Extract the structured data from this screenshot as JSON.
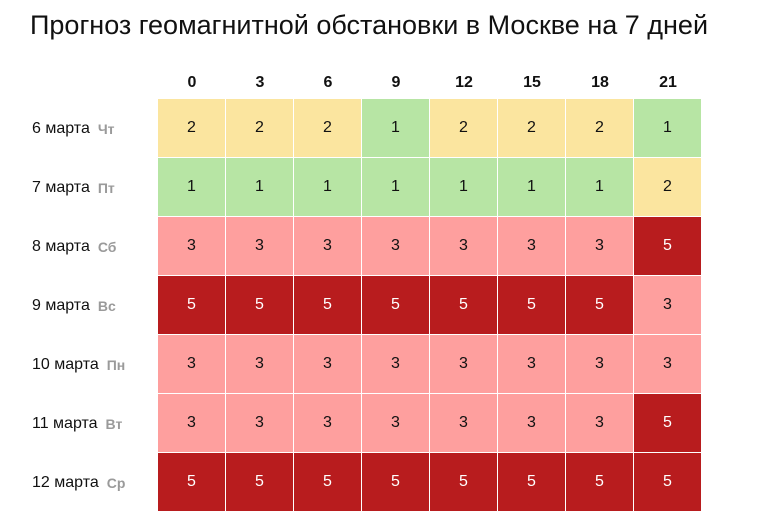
{
  "chart_data": {
    "type": "heatmap",
    "title": "Прогноз геомагнитной обстановки в Москве на 7 дней",
    "columns": [
      "0",
      "3",
      "6",
      "9",
      "12",
      "15",
      "18",
      "21"
    ],
    "rows": [
      {
        "date": "6 марта",
        "dow": "Чт",
        "values": [
          2,
          2,
          2,
          1,
          2,
          2,
          2,
          1
        ]
      },
      {
        "date": "7 марта",
        "dow": "Пт",
        "values": [
          1,
          1,
          1,
          1,
          1,
          1,
          1,
          2
        ]
      },
      {
        "date": "8 марта",
        "dow": "Сб",
        "values": [
          3,
          3,
          3,
          3,
          3,
          3,
          3,
          5
        ]
      },
      {
        "date": "9 марта",
        "dow": "Вс",
        "values": [
          5,
          5,
          5,
          5,
          5,
          5,
          5,
          3
        ]
      },
      {
        "date": "10 марта",
        "dow": "Пн",
        "values": [
          3,
          3,
          3,
          3,
          3,
          3,
          3,
          3
        ]
      },
      {
        "date": "11 марта",
        "dow": "Вт",
        "values": [
          3,
          3,
          3,
          3,
          3,
          3,
          3,
          5
        ]
      },
      {
        "date": "12 марта",
        "dow": "Ср",
        "values": [
          5,
          5,
          5,
          5,
          5,
          5,
          5,
          5
        ]
      }
    ],
    "color_scale": {
      "1": {
        "bg": "#b7e5a4",
        "fg": "#111111"
      },
      "2": {
        "bg": "#fbe59f",
        "fg": "#111111"
      },
      "3": {
        "bg": "#fe9f9e",
        "fg": "#111111"
      },
      "5": {
        "bg": "#b81c1e",
        "fg": "#ffffff"
      }
    }
  }
}
